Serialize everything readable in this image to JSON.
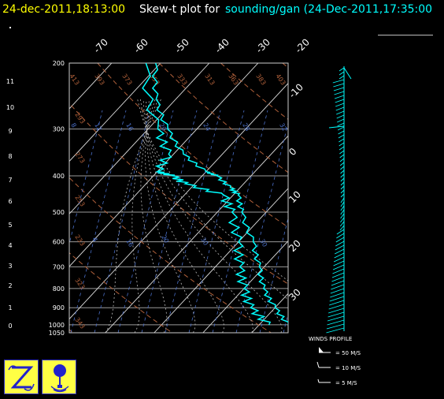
{
  "header": {
    "timestamp": "24-dec-2011,18:13:00",
    "description": "Skew-t plot for",
    "source": "sounding/gan (24-Dec-2011,17:35:00"
  },
  "colors": {
    "timestamp": "#ffff00",
    "description": "#ffffff",
    "source": "#00ffff",
    "profile": "#00ffff",
    "isotherms": "#dddddd",
    "dry_adiabats": "#b0603a",
    "mixing_ratio": "#4a6fc8",
    "moist_adiabats": "#bbbbbb",
    "logo_bg": "#ffff44",
    "logo_fg": "#2222cc"
  },
  "chart_data": {
    "type": "skew-t",
    "pressure_levels_hpa": [
      200,
      300,
      400,
      500,
      600,
      700,
      800,
      900,
      1000,
      1050
    ],
    "pressure_labels": [
      "200",
      "300",
      "400",
      "500",
      "600",
      "700",
      "800",
      "900",
      "1000",
      "1050"
    ],
    "height_km_ticks": [
      "0",
      "1",
      "2",
      "3",
      "4",
      "5",
      "6",
      "7",
      "8",
      "9",
      "10",
      "11"
    ],
    "isotherm_labels_top": [
      "-70",
      "-60",
      "-50",
      "-40",
      "-30",
      "-20"
    ],
    "isotherm_labels_right": [
      "-10",
      "0",
      "10",
      "20",
      "30"
    ],
    "dry_adiabat_labels": [
      "413",
      "393",
      "373",
      "353",
      "333",
      "313",
      "293",
      "273",
      "253",
      "233",
      "323",
      "343",
      "363",
      "383",
      "403"
    ],
    "mixing_ratio_labels": [
      "8",
      "12",
      "16",
      "20",
      "24",
      "28",
      "32",
      "4",
      "16",
      "20",
      "30",
      "30"
    ],
    "temperature_profile": [
      {
        "p": 200,
        "t": -51
      },
      {
        "p": 250,
        "t": -44
      },
      {
        "p": 300,
        "t": -36
      },
      {
        "p": 350,
        "t": -28
      },
      {
        "p": 390,
        "t": -20
      },
      {
        "p": 400,
        "t": -17
      },
      {
        "p": 430,
        "t": -12
      },
      {
        "p": 450,
        "t": -9
      },
      {
        "p": 500,
        "t": -5
      },
      {
        "p": 600,
        "t": 3
      },
      {
        "p": 700,
        "t": 9
      },
      {
        "p": 800,
        "t": 14
      },
      {
        "p": 900,
        "t": 20
      },
      {
        "p": 1000,
        "t": 26
      }
    ],
    "dewpoint_profile": [
      {
        "p": 200,
        "t": -53
      },
      {
        "p": 300,
        "t": -38
      },
      {
        "p": 350,
        "t": -31
      },
      {
        "p": 390,
        "t": -30
      },
      {
        "p": 400,
        "t": -26
      },
      {
        "p": 420,
        "t": -22
      },
      {
        "p": 450,
        "t": -12
      },
      {
        "p": 500,
        "t": -7
      },
      {
        "p": 600,
        "t": 0
      },
      {
        "p": 700,
        "t": 5
      },
      {
        "p": 800,
        "t": 10
      },
      {
        "p": 900,
        "t": 15
      },
      {
        "p": 1000,
        "t": 22
      }
    ],
    "wind_profile": {
      "label": "WINDS PROFILE",
      "legend": [
        {
          "text": "= 50 M/S"
        },
        {
          "text": "= 10 M/S"
        },
        {
          "text": "= 5 M/S"
        }
      ]
    }
  }
}
